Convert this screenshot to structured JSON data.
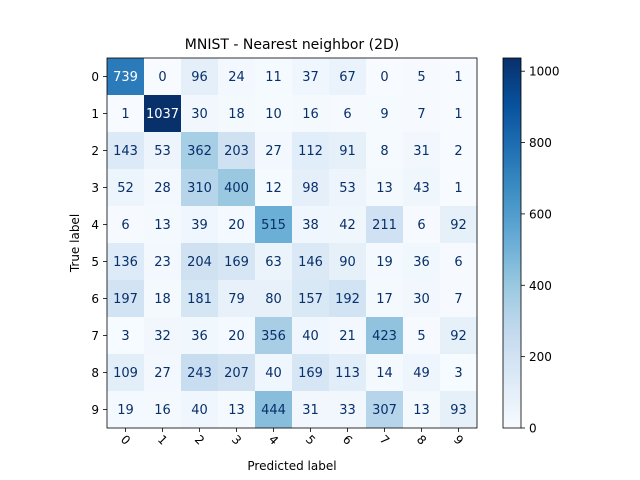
{
  "chart_data": {
    "type": "heatmap",
    "title": "MNIST - Nearest neighbor (2D)",
    "xlabel": "Predicted label",
    "ylabel": "True label",
    "x_categories": [
      "0",
      "1",
      "2",
      "3",
      "4",
      "5",
      "6",
      "7",
      "8",
      "9"
    ],
    "y_categories": [
      "0",
      "1",
      "2",
      "3",
      "4",
      "5",
      "6",
      "7",
      "8",
      "9"
    ],
    "values": [
      [
        739,
        0,
        96,
        24,
        11,
        37,
        67,
        0,
        5,
        1
      ],
      [
        1,
        1037,
        30,
        18,
        10,
        16,
        6,
        9,
        7,
        1
      ],
      [
        143,
        53,
        362,
        203,
        27,
        112,
        91,
        8,
        31,
        2
      ],
      [
        52,
        28,
        310,
        400,
        12,
        98,
        53,
        13,
        43,
        1
      ],
      [
        6,
        13,
        39,
        20,
        515,
        38,
        42,
        211,
        6,
        92
      ],
      [
        136,
        23,
        204,
        169,
        63,
        146,
        90,
        19,
        36,
        6
      ],
      [
        197,
        18,
        181,
        79,
        80,
        157,
        192,
        17,
        30,
        7
      ],
      [
        3,
        32,
        36,
        20,
        356,
        40,
        21,
        423,
        5,
        92
      ],
      [
        109,
        27,
        243,
        207,
        40,
        169,
        113,
        14,
        49,
        3
      ],
      [
        19,
        16,
        40,
        13,
        444,
        31,
        33,
        307,
        13,
        93
      ]
    ],
    "colormap": "Blues",
    "colorbar": {
      "min": 0,
      "max": 1037,
      "ticks": [
        0,
        200,
        400,
        600,
        800,
        1000
      ]
    },
    "grid": false,
    "x_tick_rotation": "45 degrees"
  }
}
